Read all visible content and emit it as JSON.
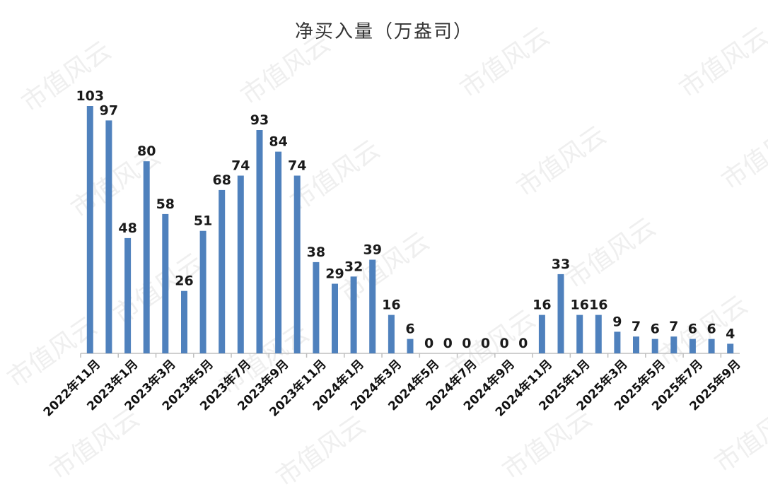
{
  "chart_data": {
    "type": "bar",
    "title": "净买入量（万盎司）",
    "xlabel": "",
    "ylabel": "",
    "ylim": [
      0,
      110
    ],
    "grid": false,
    "legend": "none",
    "bar_color": "#4F81BD",
    "categories": [
      "2022年11月",
      "2022年12月",
      "2023年1月",
      "2023年2月",
      "2023年3月",
      "2023年4月",
      "2023年5月",
      "2023年6月",
      "2023年7月",
      "2023年8月",
      "2023年9月",
      "2023年10月",
      "2023年11月",
      "2023年12月",
      "2024年1月",
      "2024年2月",
      "2024年3月",
      "2024年4月",
      "2024年5月",
      "2024年6月",
      "2024年7月",
      "2024年8月",
      "2024年9月",
      "2024年10月",
      "2024年11月",
      "2024年12月",
      "2025年1月",
      "2025年2月",
      "2025年3月",
      "2025年4月",
      "2025年5月",
      "2025年6月",
      "2025年7月",
      "2025年8月",
      "2025年9月"
    ],
    "tick_labels": [
      "2022年11月",
      "",
      "2023年1月",
      "",
      "2023年3月",
      "",
      "2023年5月",
      "",
      "2023年7月",
      "",
      "2023年9月",
      "",
      "2023年11月",
      "",
      "2024年1月",
      "",
      "2024年3月",
      "",
      "2024年5月",
      "",
      "2024年7月",
      "",
      "2024年9月",
      "",
      "2024年11月",
      "",
      "2025年1月",
      "",
      "2025年3月",
      "",
      "2025年5月",
      "",
      "2025年7月",
      "",
      "2025年9月"
    ],
    "values": [
      103,
      97,
      48,
      80,
      58,
      26,
      51,
      68,
      74,
      93,
      84,
      74,
      38,
      29,
      32,
      39,
      16,
      6,
      0,
      0,
      0,
      0,
      0,
      0,
      16,
      33,
      16,
      16,
      9,
      7,
      6,
      7,
      6,
      6,
      4
    ]
  },
  "watermark": "市值风云"
}
